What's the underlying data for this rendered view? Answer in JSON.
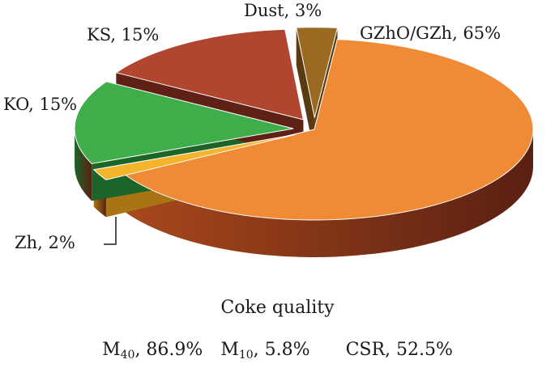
{
  "chart_data": {
    "type": "pie",
    "title": "",
    "slices": [
      {
        "name": "GZhO/GZh",
        "value": 65,
        "label": "GZhO/GZh, 65%",
        "color": "#f08a35",
        "side": "#a8481c",
        "exploded": false
      },
      {
        "name": "Zh",
        "value": 2,
        "label": "Zh, 2%",
        "color": "#f4b42c",
        "side": "#a87414",
        "exploded": true
      },
      {
        "name": "KO",
        "value": 15,
        "label": "KO, 15%",
        "color": "#3fae4a",
        "side": "#1d6428",
        "exploded": true
      },
      {
        "name": "KS",
        "value": 15,
        "label": "KS, 15%",
        "color": "#b1452f",
        "side": "#5f2015",
        "exploded": true
      },
      {
        "name": "Dust",
        "value": 3,
        "label": "Dust, 3%",
        "color": "#9a6a22",
        "side": "#5a3a10",
        "exploded": true
      }
    ],
    "legend": "none",
    "view": "3d-exploded"
  },
  "quality": {
    "title": "Coke quality",
    "metrics": [
      {
        "name": "M",
        "subscript": "40",
        "value": ", 86.9%"
      },
      {
        "name": "M",
        "subscript": "10",
        "value": ", 5.8%"
      },
      {
        "name": "CSR",
        "subscript": "",
        "value": ", 52.5%"
      }
    ]
  }
}
